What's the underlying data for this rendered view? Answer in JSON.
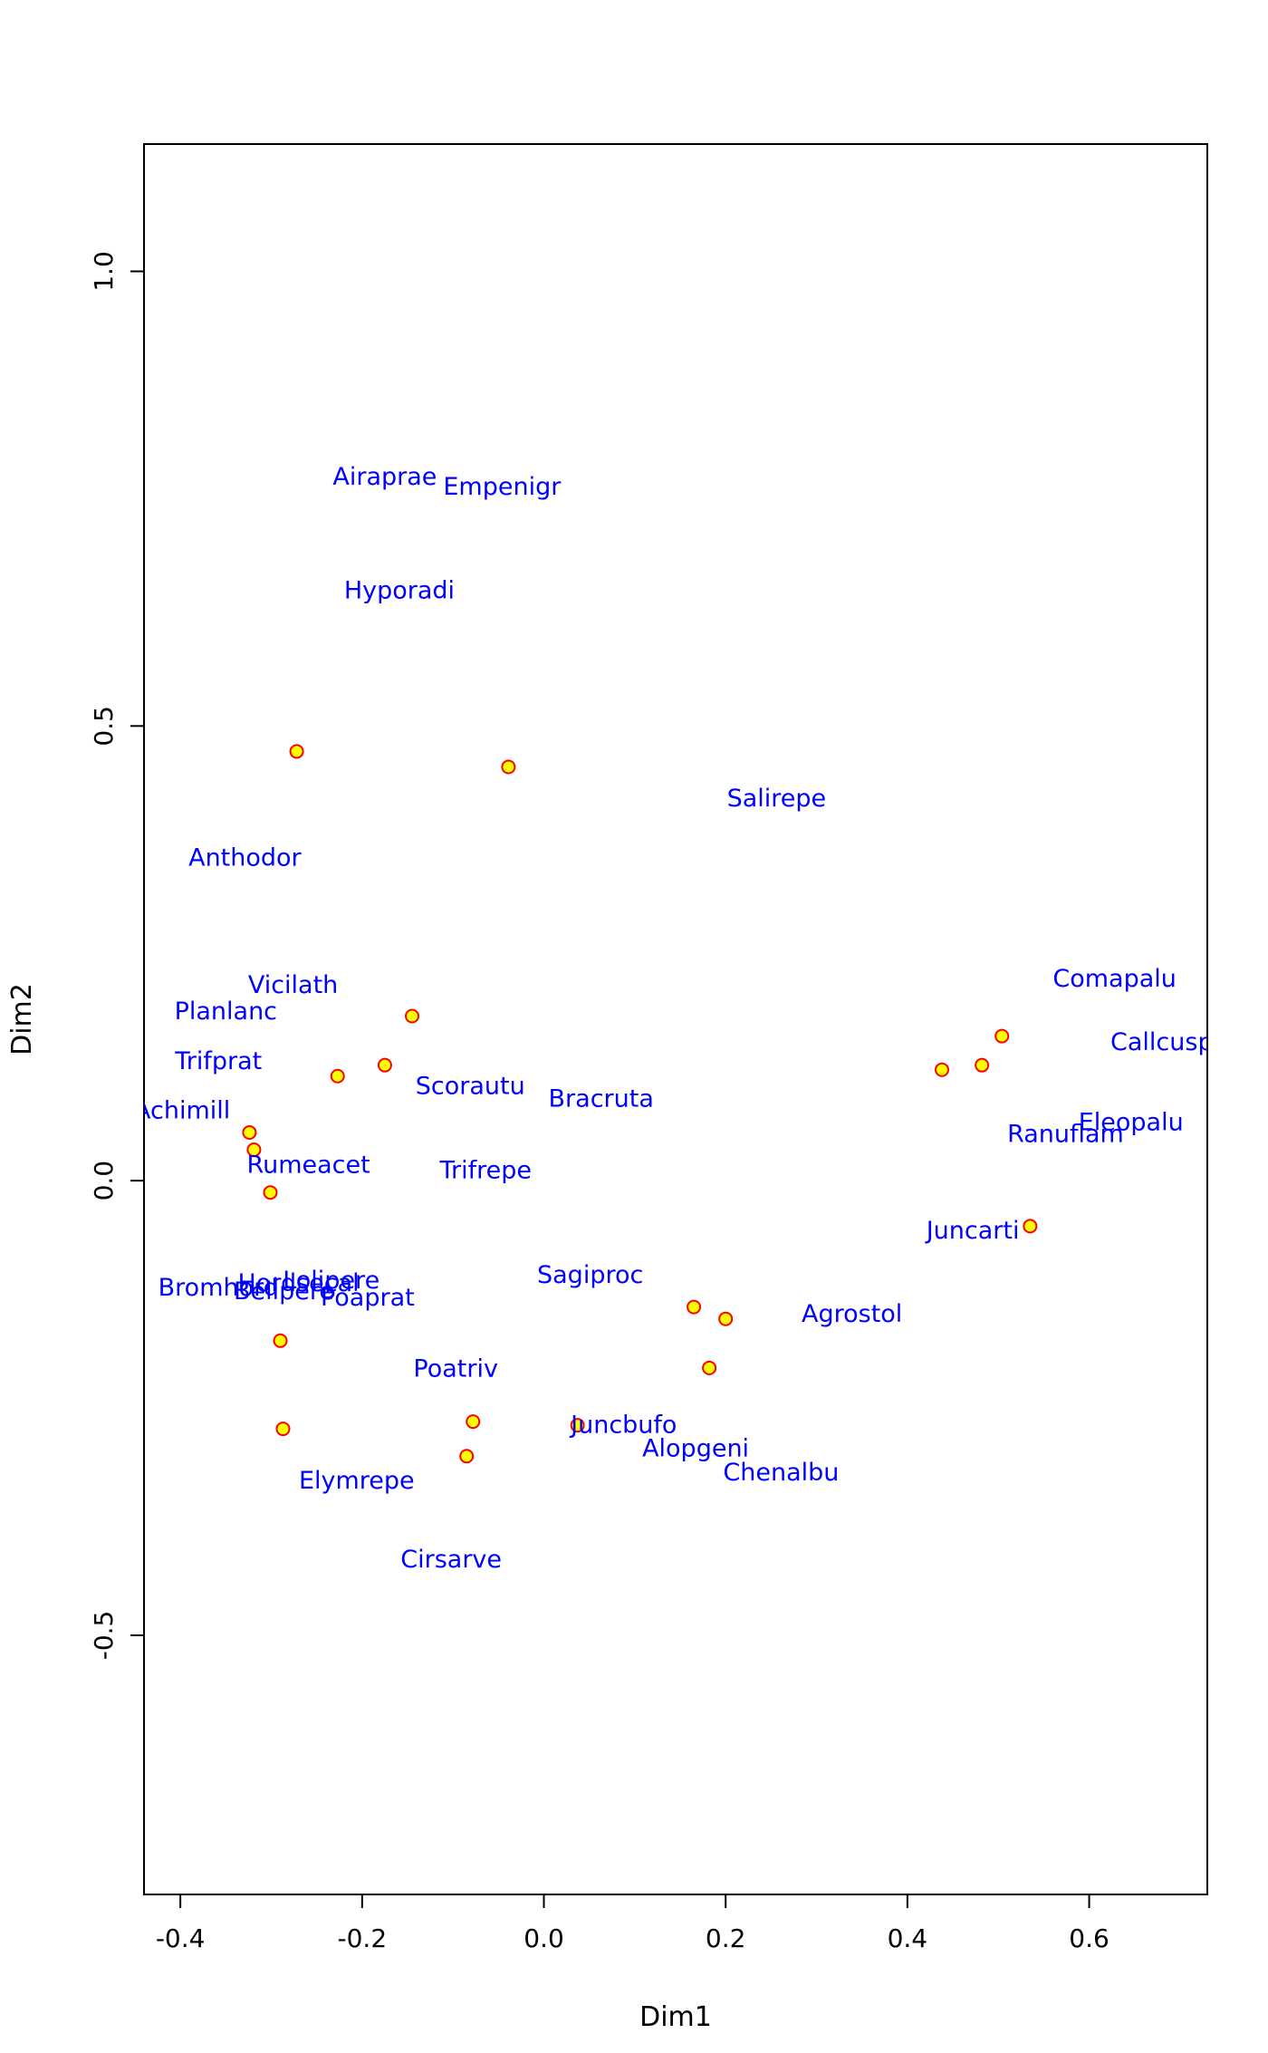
{
  "chart_data": {
    "type": "scatter",
    "xlabel": "Dim1",
    "ylabel": "Dim2",
    "xlim": [
      -0.44,
      0.73
    ],
    "ylim": [
      -0.785,
      1.14
    ],
    "x_ticks": [
      -0.4,
      -0.2,
      0.0,
      0.2,
      0.4,
      0.6
    ],
    "x_tick_labels": [
      "-0.4",
      "-0.2",
      "0.0",
      "0.2",
      "0.4",
      "0.6"
    ],
    "y_ticks": [
      -0.5,
      0.0,
      0.5,
      1.0
    ],
    "y_tick_labels": [
      "-0.5",
      "0.0",
      "0.5",
      "1.0"
    ],
    "grid": false,
    "point_fill": "#ffff00",
    "point_stroke": "#ff0000",
    "label_color": "#0000ff",
    "sites": [
      {
        "x": -0.272,
        "y": 0.472
      },
      {
        "x": -0.039,
        "y": 0.455
      },
      {
        "x": -0.145,
        "y": 0.181
      },
      {
        "x": -0.175,
        "y": 0.127
      },
      {
        "x": -0.227,
        "y": 0.115
      },
      {
        "x": -0.324,
        "y": 0.053
      },
      {
        "x": -0.319,
        "y": 0.034
      },
      {
        "x": -0.301,
        "y": -0.013
      },
      {
        "x": -0.29,
        "y": -0.176
      },
      {
        "x": -0.287,
        "y": -0.273
      },
      {
        "x": -0.078,
        "y": -0.265
      },
      {
        "x": -0.085,
        "y": -0.303
      },
      {
        "x": 0.037,
        "y": -0.269
      },
      {
        "x": 0.165,
        "y": -0.139
      },
      {
        "x": 0.2,
        "y": -0.152
      },
      {
        "x": 0.182,
        "y": -0.206
      },
      {
        "x": 0.438,
        "y": 0.122
      },
      {
        "x": 0.482,
        "y": 0.127
      },
      {
        "x": 0.504,
        "y": 0.159
      },
      {
        "x": 0.535,
        "y": -0.05
      }
    ],
    "species": [
      {
        "label": "Airaprae",
        "x": -0.175,
        "y": 0.773
      },
      {
        "label": "Empenigr",
        "x": -0.046,
        "y": 0.762
      },
      {
        "label": "Hyporadi",
        "x": -0.159,
        "y": 0.648
      },
      {
        "label": "Salirepe",
        "x": 0.256,
        "y": 0.419
      },
      {
        "label": "Anthodor",
        "x": -0.329,
        "y": 0.354
      },
      {
        "label": "Vicilath",
        "x": -0.276,
        "y": 0.214
      },
      {
        "label": "Comapalu",
        "x": 0.628,
        "y": 0.221
      },
      {
        "label": "Planlanc",
        "x": -0.35,
        "y": 0.185
      },
      {
        "label": "Trifprat",
        "x": -0.358,
        "y": 0.13
      },
      {
        "label": "Callcusp",
        "x": 0.68,
        "y": 0.151
      },
      {
        "label": "Scorautu",
        "x": -0.081,
        "y": 0.103
      },
      {
        "label": "Bracruta",
        "x": 0.063,
        "y": 0.089
      },
      {
        "label": "Achimill",
        "x": -0.398,
        "y": 0.076
      },
      {
        "label": "Eleopalu",
        "x": 0.646,
        "y": 0.063
      },
      {
        "label": "Ranuflam",
        "x": 0.574,
        "y": 0.05
      },
      {
        "label": "Rumeacet",
        "x": -0.259,
        "y": 0.016
      },
      {
        "label": "Trifrepe",
        "x": -0.064,
        "y": 0.01
      },
      {
        "label": "Juncarti",
        "x": 0.472,
        "y": -0.056
      },
      {
        "label": "Sagiproc",
        "x": 0.051,
        "y": -0.105
      },
      {
        "label": "Bromhord",
        "x": -0.358,
        "y": -0.119
      },
      {
        "label": "Hordsecal",
        "x": -0.27,
        "y": -0.114
      },
      {
        "label": "Bellpere",
        "x": -0.286,
        "y": -0.123
      },
      {
        "label": "Poaprat",
        "x": -0.194,
        "y": -0.13
      },
      {
        "label": "Lolipere",
        "x": -0.234,
        "y": -0.111
      },
      {
        "label": "Agrostol",
        "x": 0.339,
        "y": -0.148
      },
      {
        "label": "Poatriv",
        "x": -0.097,
        "y": -0.208
      },
      {
        "label": "Juncbufo",
        "x": 0.088,
        "y": -0.27
      },
      {
        "label": "Alopgeni",
        "x": 0.167,
        "y": -0.296
      },
      {
        "label": "Chenalbu",
        "x": 0.261,
        "y": -0.322
      },
      {
        "label": "Elymrepe",
        "x": -0.206,
        "y": -0.331
      },
      {
        "label": "Cirsarve",
        "x": -0.102,
        "y": -0.418
      }
    ]
  }
}
